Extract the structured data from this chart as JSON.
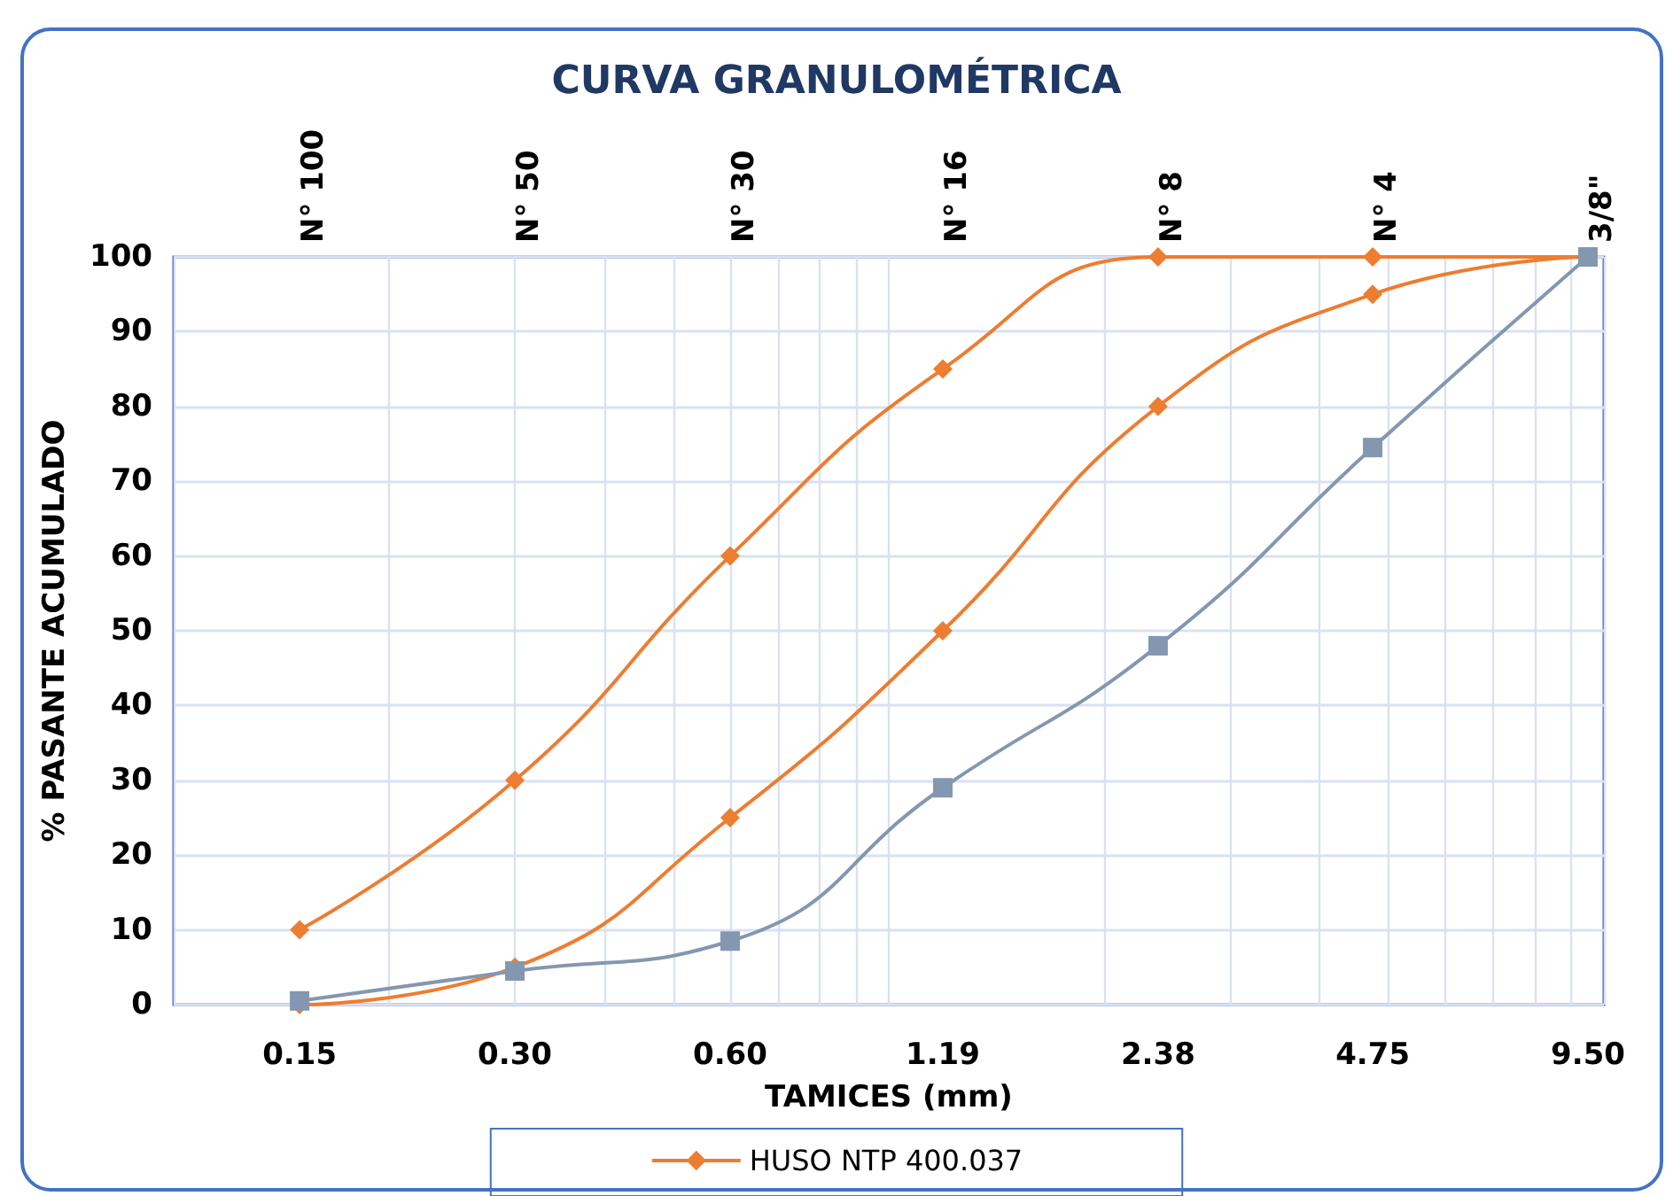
{
  "chart_data": {
    "type": "line",
    "title": "CURVA GRANULOMÉTRICA",
    "xlabel": "TAMICES (mm)",
    "ylabel": "% PASANTE ACUMULADO",
    "log": "x",
    "x": [
      0.15,
      0.3,
      0.6,
      1.19,
      2.38,
      4.75,
      9.5
    ],
    "xlim": [
      0.1,
      10
    ],
    "xticks": [
      0.15,
      {
        "value": 0.3,
        "label": "0.30"
      },
      {
        "value": 0.6,
        "label": "0.60"
      },
      1.19,
      2.38,
      4.75,
      {
        "value": 9.5,
        "label": "9.50"
      }
    ],
    "annotations": [
      "N° 100",
      "N° 50",
      "N° 30",
      "N° 16",
      "N° 8",
      "N° 4",
      "3/8\""
    ],
    "ylim": [
      0,
      100
    ],
    "yticks": [
      0,
      10,
      20,
      30,
      40,
      50,
      60,
      70,
      80,
      90,
      100
    ],
    "grid": true,
    "legend": "bottom",
    "series": [
      {
        "name": "HUSO NTP 400.037",
        "color": "#ed7d31",
        "marker": "diamond",
        "values": [
          10,
          30,
          60,
          85,
          100,
          100,
          100
        ]
      },
      {
        "color": "#ed7d31",
        "marker": "diamond",
        "values": [
          0,
          5,
          25,
          50,
          80,
          95,
          100
        ]
      },
      {
        "color": "#8497b0",
        "marker": "square",
        "values": [
          0.5,
          4.5,
          8.5,
          29,
          48,
          74.5,
          100
        ]
      }
    ]
  }
}
